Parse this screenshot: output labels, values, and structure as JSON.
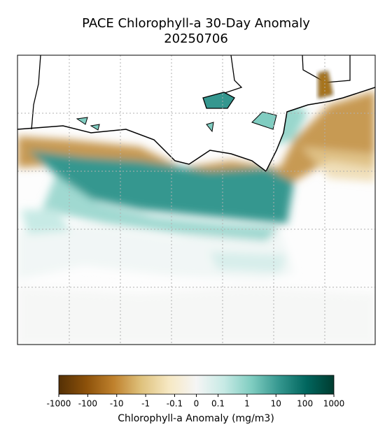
{
  "chart_data": {
    "type": "map",
    "title": [
      "PACE Chlorophyll-a 30-Day Anomaly",
      "20250706"
    ],
    "colorbar": {
      "label": "Chlorophyll-a Anomaly (mg/m3)",
      "scale": "symlog",
      "linthresh": 0.1,
      "lim": [
        -1000,
        1000
      ],
      "ticks": [
        -1000,
        -100,
        -10,
        -1,
        -0.1,
        0,
        0.1,
        1,
        10,
        100,
        1000
      ],
      "colors": [
        "#543005",
        "#8c510a",
        "#bf812d",
        "#dfc27d",
        "#f6e8c3",
        "#f5f5f5",
        "#c7eae5",
        "#80cdc1",
        "#35978f",
        "#01665e",
        "#003c30"
      ]
    }
  }
}
